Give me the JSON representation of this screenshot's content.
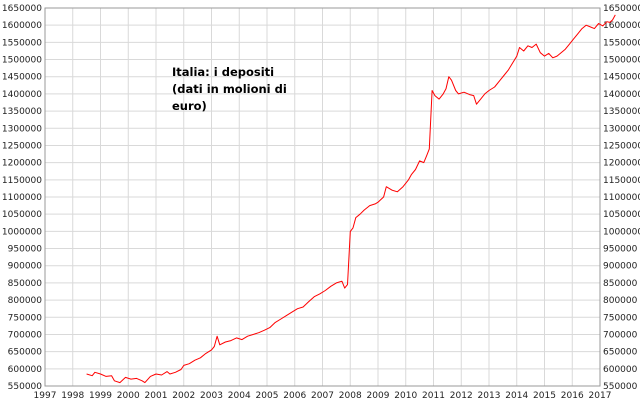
{
  "chart_data": {
    "type": "line",
    "title": "",
    "xlabel": "",
    "ylabel": "",
    "annotation_lines": [
      "Italia: i depositi",
      "(dati in molioni di",
      "euro)"
    ],
    "line_color": "#ff0000",
    "grid": true,
    "y_axes": "left-and-right",
    "xlim": [
      1997,
      2017
    ],
    "ylim": [
      550000,
      1650000
    ],
    "x_ticks": [
      1997,
      1998,
      1999,
      2000,
      2001,
      2002,
      2003,
      2004,
      2005,
      2006,
      2007,
      2008,
      2009,
      2010,
      2011,
      2012,
      2013,
      2014,
      2015,
      2016,
      2017
    ],
    "y_ticks": [
      550000,
      600000,
      650000,
      700000,
      750000,
      800000,
      850000,
      900000,
      950000,
      1000000,
      1050000,
      1100000,
      1150000,
      1200000,
      1250000,
      1300000,
      1350000,
      1400000,
      1450000,
      1500000,
      1550000,
      1600000,
      1650000
    ],
    "series": [
      {
        "points": [
          [
            1998.5,
            585000
          ],
          [
            1998.7,
            580000
          ],
          [
            1998.8,
            590000
          ],
          [
            1999.0,
            585000
          ],
          [
            1999.2,
            578000
          ],
          [
            1999.4,
            580000
          ],
          [
            1999.5,
            565000
          ],
          [
            1999.7,
            560000
          ],
          [
            1999.9,
            575000
          ],
          [
            2000.1,
            570000
          ],
          [
            2000.3,
            572000
          ],
          [
            2000.5,
            565000
          ],
          [
            2000.6,
            560000
          ],
          [
            2000.8,
            578000
          ],
          [
            2001.0,
            585000
          ],
          [
            2001.2,
            582000
          ],
          [
            2001.4,
            592000
          ],
          [
            2001.5,
            585000
          ],
          [
            2001.7,
            590000
          ],
          [
            2001.9,
            598000
          ],
          [
            2002.0,
            610000
          ],
          [
            2002.2,
            615000
          ],
          [
            2002.4,
            625000
          ],
          [
            2002.6,
            632000
          ],
          [
            2002.8,
            645000
          ],
          [
            2003.0,
            655000
          ],
          [
            2003.1,
            665000
          ],
          [
            2003.2,
            695000
          ],
          [
            2003.3,
            670000
          ],
          [
            2003.5,
            678000
          ],
          [
            2003.7,
            682000
          ],
          [
            2003.9,
            690000
          ],
          [
            2004.1,
            685000
          ],
          [
            2004.3,
            695000
          ],
          [
            2004.5,
            700000
          ],
          [
            2004.7,
            705000
          ],
          [
            2004.9,
            712000
          ],
          [
            2005.1,
            720000
          ],
          [
            2005.3,
            735000
          ],
          [
            2005.5,
            745000
          ],
          [
            2005.7,
            755000
          ],
          [
            2005.9,
            765000
          ],
          [
            2006.1,
            775000
          ],
          [
            2006.3,
            780000
          ],
          [
            2006.5,
            795000
          ],
          [
            2006.7,
            810000
          ],
          [
            2006.9,
            818000
          ],
          [
            2007.1,
            828000
          ],
          [
            2007.3,
            840000
          ],
          [
            2007.5,
            850000
          ],
          [
            2007.7,
            855000
          ],
          [
            2007.8,
            835000
          ],
          [
            2007.9,
            845000
          ],
          [
            2008.0,
            1000000
          ],
          [
            2008.1,
            1010000
          ],
          [
            2008.2,
            1040000
          ],
          [
            2008.35,
            1050000
          ],
          [
            2008.5,
            1062000
          ],
          [
            2008.7,
            1075000
          ],
          [
            2008.9,
            1080000
          ],
          [
            2009.0,
            1085000
          ],
          [
            2009.2,
            1100000
          ],
          [
            2009.3,
            1130000
          ],
          [
            2009.5,
            1120000
          ],
          [
            2009.7,
            1115000
          ],
          [
            2009.9,
            1130000
          ],
          [
            2010.1,
            1150000
          ],
          [
            2010.2,
            1165000
          ],
          [
            2010.35,
            1180000
          ],
          [
            2010.5,
            1205000
          ],
          [
            2010.65,
            1200000
          ],
          [
            2010.75,
            1220000
          ],
          [
            2010.85,
            1240000
          ],
          [
            2010.95,
            1410000
          ],
          [
            2011.05,
            1395000
          ],
          [
            2011.2,
            1385000
          ],
          [
            2011.35,
            1400000
          ],
          [
            2011.45,
            1415000
          ],
          [
            2011.55,
            1450000
          ],
          [
            2011.65,
            1440000
          ],
          [
            2011.8,
            1410000
          ],
          [
            2011.9,
            1400000
          ],
          [
            2012.1,
            1405000
          ],
          [
            2012.3,
            1398000
          ],
          [
            2012.45,
            1395000
          ],
          [
            2012.55,
            1370000
          ],
          [
            2012.7,
            1385000
          ],
          [
            2012.85,
            1400000
          ],
          [
            2013.0,
            1410000
          ],
          [
            2013.2,
            1420000
          ],
          [
            2013.4,
            1440000
          ],
          [
            2013.55,
            1455000
          ],
          [
            2013.7,
            1470000
          ],
          [
            2013.85,
            1490000
          ],
          [
            2014.0,
            1510000
          ],
          [
            2014.1,
            1535000
          ],
          [
            2014.25,
            1525000
          ],
          [
            2014.4,
            1540000
          ],
          [
            2014.55,
            1535000
          ],
          [
            2014.7,
            1545000
          ],
          [
            2014.85,
            1520000
          ],
          [
            2015.0,
            1510000
          ],
          [
            2015.15,
            1518000
          ],
          [
            2015.3,
            1505000
          ],
          [
            2015.45,
            1510000
          ],
          [
            2015.6,
            1520000
          ],
          [
            2015.75,
            1530000
          ],
          [
            2015.9,
            1545000
          ],
          [
            2016.05,
            1560000
          ],
          [
            2016.2,
            1575000
          ],
          [
            2016.35,
            1590000
          ],
          [
            2016.5,
            1600000
          ],
          [
            2016.65,
            1595000
          ],
          [
            2016.8,
            1590000
          ],
          [
            2016.95,
            1605000
          ],
          [
            2017.1,
            1598000
          ],
          [
            2017.25,
            1610000
          ],
          [
            2017.35,
            1608000
          ],
          [
            2017.45,
            1615000
          ],
          [
            2017.55,
            1630000
          ]
        ]
      }
    ]
  }
}
